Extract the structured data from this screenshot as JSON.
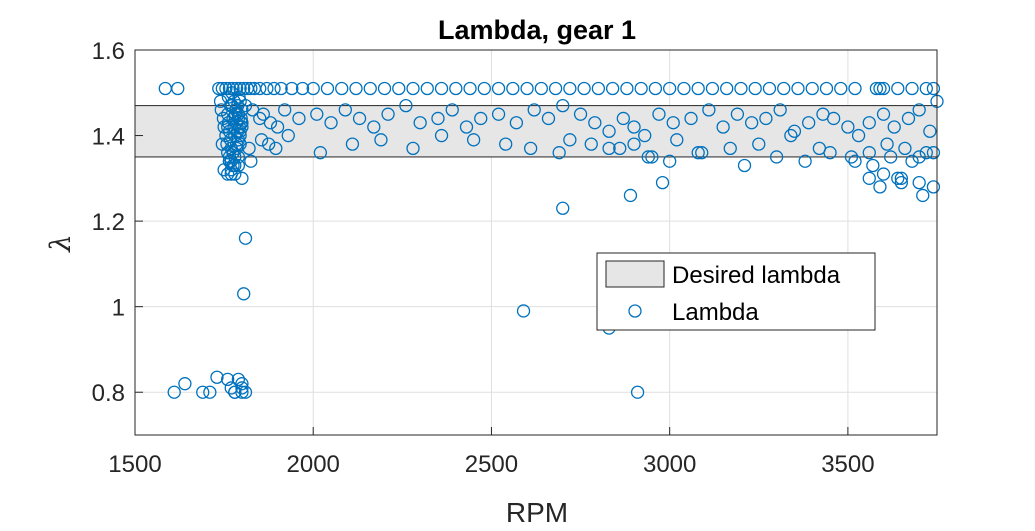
{
  "chart_data": {
    "type": "scatter",
    "title": "Lambda, gear 1",
    "xlabel": "RPM",
    "ylabel": "λ",
    "xlim": [
      1500,
      3750
    ],
    "ylim": [
      0.7,
      1.6
    ],
    "xticks": [
      1500,
      2000,
      2500,
      3000,
      3500
    ],
    "yticks": [
      0.8,
      1.0,
      1.2,
      1.4,
      1.6
    ],
    "xtick_labels": [
      "1500",
      "2000",
      "2500",
      "3000",
      "3500"
    ],
    "ytick_labels": [
      "0.8",
      "1",
      "1.2",
      "1.4",
      "1.6"
    ],
    "grid": true,
    "legend_position": "inside-right",
    "band": {
      "name": "Desired lambda",
      "y_low": 1.35,
      "y_high": 1.47,
      "color": "#e6e6e6"
    },
    "series": [
      {
        "name": "Lambda",
        "marker": "circle-open",
        "color": "#0072bd",
        "x": [
          1585,
          1620,
          1735,
          1745,
          1755,
          1765,
          1775,
          1785,
          1795,
          1805,
          1815,
          1825,
          1835,
          1850,
          1870,
          1890,
          1910,
          1940,
          1970,
          2000,
          2040,
          2080,
          2120,
          2160,
          2200,
          2240,
          2280,
          2320,
          2360,
          2400,
          2440,
          2480,
          2520,
          2560,
          2600,
          2640,
          2680,
          2720,
          2760,
          2800,
          2840,
          2880,
          2920,
          2960,
          3000,
          3040,
          3080,
          3120,
          3160,
          3200,
          3240,
          3280,
          3320,
          3360,
          3400,
          3440,
          3480,
          3520,
          3580,
          3590,
          3600,
          3640,
          3680,
          3720,
          3740,
          1740,
          1742,
          1748,
          1750,
          1755,
          1758,
          1760,
          1762,
          1765,
          1768,
          1770,
          1772,
          1775,
          1778,
          1780,
          1783,
          1785,
          1788,
          1790,
          1793,
          1795,
          1798,
          1800,
          1760,
          1765,
          1770,
          1775,
          1780,
          1785,
          1790,
          1795,
          1800,
          1762,
          1768,
          1772,
          1778,
          1782,
          1788,
          1792,
          1798,
          1770,
          1780,
          1790,
          1760,
          1775,
          1785,
          1765,
          1795,
          1800,
          1790,
          1745,
          1760,
          1810,
          1830,
          1850,
          1860,
          1880,
          1900,
          1920,
          1960,
          2010,
          2050,
          2090,
          2130,
          2170,
          2210,
          2260,
          2300,
          2350,
          2390,
          2430,
          2470,
          2520,
          2570,
          2620,
          2660,
          2700,
          2750,
          2790,
          2830,
          2870,
          2900,
          2930,
          2970,
          3010,
          3060,
          3110,
          3150,
          3190,
          3230,
          3270,
          3310,
          3350,
          3390,
          3430,
          3460,
          3500,
          3530,
          3560,
          3600,
          3630,
          3670,
          3700,
          3730,
          3750,
          1855,
          1875,
          1895,
          1930,
          2020,
          2110,
          2190,
          2280,
          2360,
          2450,
          2540,
          2610,
          2690,
          2780,
          2860,
          2940,
          3020,
          3090,
          3170,
          3250,
          3340,
          3420,
          3510,
          3560,
          3610,
          3660,
          3700,
          3740,
          2720,
          2830,
          2900,
          2950,
          3000,
          3080,
          3210,
          3300,
          3380,
          3450,
          3520,
          3570,
          3620,
          3680,
          3720,
          3560,
          3600,
          3650,
          3700,
          2890,
          2980,
          3590,
          3650,
          3710,
          3740,
          2700,
          3640,
          2590,
          2830,
          1765,
          1770,
          1750,
          1780,
          1790,
          1800,
          1810,
          1805,
          1795,
          1775,
          1820,
          1825,
          1610,
          1640,
          1690,
          1710,
          1730,
          1760,
          1770,
          1780,
          1790,
          1800,
          1800,
          1810,
          1780,
          1800,
          2910
        ],
        "y": [
          1.51,
          1.51,
          1.51,
          1.51,
          1.51,
          1.51,
          1.51,
          1.51,
          1.51,
          1.51,
          1.51,
          1.51,
          1.51,
          1.51,
          1.51,
          1.51,
          1.51,
          1.51,
          1.51,
          1.51,
          1.51,
          1.51,
          1.51,
          1.51,
          1.51,
          1.51,
          1.51,
          1.51,
          1.51,
          1.51,
          1.51,
          1.51,
          1.51,
          1.51,
          1.51,
          1.51,
          1.51,
          1.51,
          1.51,
          1.51,
          1.51,
          1.51,
          1.51,
          1.51,
          1.51,
          1.51,
          1.51,
          1.51,
          1.51,
          1.51,
          1.51,
          1.51,
          1.51,
          1.51,
          1.51,
          1.51,
          1.51,
          1.51,
          1.51,
          1.51,
          1.51,
          1.51,
          1.51,
          1.51,
          1.51,
          1.48,
          1.46,
          1.44,
          1.42,
          1.4,
          1.38,
          1.45,
          1.43,
          1.41,
          1.39,
          1.37,
          1.47,
          1.44,
          1.42,
          1.4,
          1.46,
          1.43,
          1.41,
          1.45,
          1.42,
          1.48,
          1.44,
          1.46,
          1.36,
          1.35,
          1.34,
          1.33,
          1.35,
          1.37,
          1.39,
          1.41,
          1.43,
          1.49,
          1.47,
          1.5,
          1.48,
          1.45,
          1.47,
          1.49,
          1.43,
          1.32,
          1.31,
          1.33,
          1.31,
          1.36,
          1.38,
          1.34,
          1.4,
          1.42,
          1.44,
          1.38,
          1.42,
          1.47,
          1.46,
          1.44,
          1.45,
          1.43,
          1.42,
          1.46,
          1.44,
          1.45,
          1.43,
          1.46,
          1.44,
          1.42,
          1.45,
          1.47,
          1.43,
          1.44,
          1.46,
          1.42,
          1.44,
          1.45,
          1.43,
          1.46,
          1.44,
          1.47,
          1.45,
          1.43,
          1.41,
          1.44,
          1.42,
          1.4,
          1.45,
          1.43,
          1.44,
          1.46,
          1.42,
          1.45,
          1.43,
          1.44,
          1.46,
          1.41,
          1.43,
          1.45,
          1.44,
          1.42,
          1.4,
          1.43,
          1.45,
          1.42,
          1.44,
          1.46,
          1.41,
          1.48,
          1.39,
          1.38,
          1.37,
          1.4,
          1.36,
          1.38,
          1.39,
          1.37,
          1.4,
          1.39,
          1.38,
          1.37,
          1.36,
          1.38,
          1.37,
          1.35,
          1.39,
          1.36,
          1.37,
          1.38,
          1.4,
          1.37,
          1.35,
          1.36,
          1.38,
          1.37,
          1.35,
          1.36,
          1.39,
          1.37,
          1.38,
          1.35,
          1.34,
          1.36,
          1.33,
          1.35,
          1.34,
          1.36,
          1.34,
          1.33,
          1.35,
          1.34,
          1.36,
          1.3,
          1.31,
          1.3,
          1.29,
          1.26,
          1.29,
          1.28,
          1.29,
          1.26,
          1.28,
          1.23,
          1.3,
          0.99,
          0.95,
          1.34,
          1.31,
          1.32,
          1.33,
          1.35,
          1.3,
          1.16,
          1.03,
          1.38,
          1.36,
          1.37,
          1.34,
          0.8,
          0.82,
          0.8,
          0.8,
          0.835,
          0.83,
          0.81,
          0.8,
          0.83,
          0.82,
          0.8,
          0.8,
          0.8,
          0.81,
          0.8
        ]
      }
    ]
  }
}
